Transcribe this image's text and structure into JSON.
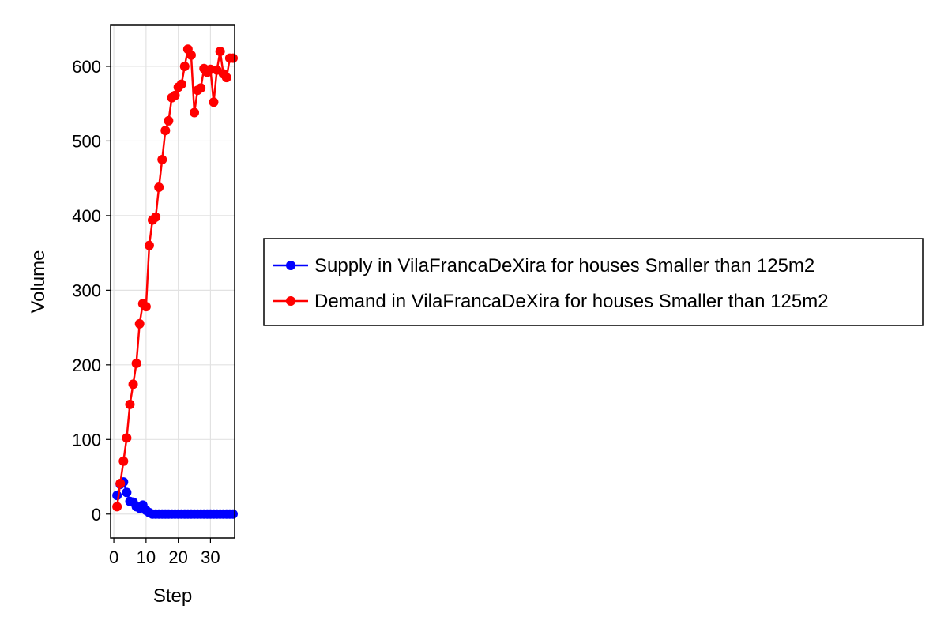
{
  "chart_data": {
    "type": "line",
    "title": "",
    "xlabel": "Step",
    "ylabel": "Volume",
    "xlim": [
      -1,
      37.5
    ],
    "ylim": [
      -32,
      655
    ],
    "xticks": [
      0,
      10,
      20,
      30
    ],
    "yticks": [
      0,
      100,
      200,
      300,
      400,
      500,
      600
    ],
    "grid": true,
    "legend_position": "right",
    "series": [
      {
        "name": "Supply in VilaFrancaDeXira for houses Smaller than 125m2",
        "color": "#0000ff",
        "x": [
          1,
          2,
          3,
          4,
          5,
          6,
          7,
          8,
          9,
          10,
          11,
          12,
          13,
          14,
          15,
          16,
          17,
          18,
          19,
          20,
          21,
          22,
          23,
          24,
          25,
          26,
          27,
          28,
          29,
          30,
          31,
          32,
          33,
          34,
          35,
          36,
          37
        ],
        "y": [
          25,
          40,
          43,
          29,
          17,
          16,
          10,
          8,
          12,
          5,
          2,
          0,
          0,
          0,
          0,
          0,
          0,
          0,
          0,
          0,
          0,
          0,
          0,
          0,
          0,
          0,
          0,
          0,
          0,
          0,
          0,
          0,
          0,
          0,
          0,
          0,
          0
        ]
      },
      {
        "name": "Demand in VilaFrancaDeXira for houses Smaller than 125m2",
        "color": "#ff0000",
        "x": [
          1,
          2,
          3,
          4,
          5,
          6,
          7,
          8,
          9,
          10,
          11,
          12,
          13,
          14,
          15,
          16,
          17,
          18,
          19,
          20,
          21,
          22,
          23,
          24,
          25,
          26,
          27,
          28,
          29,
          30,
          31,
          32,
          33,
          34,
          35,
          36,
          37
        ],
        "y": [
          10,
          41,
          71,
          102,
          147,
          174,
          202,
          255,
          282,
          278,
          360,
          394,
          398,
          438,
          475,
          514,
          527,
          558,
          561,
          572,
          576,
          600,
          623,
          615,
          538,
          568,
          571,
          597,
          592,
          596,
          552,
          595,
          620,
          590,
          585,
          611,
          611
        ]
      }
    ]
  }
}
